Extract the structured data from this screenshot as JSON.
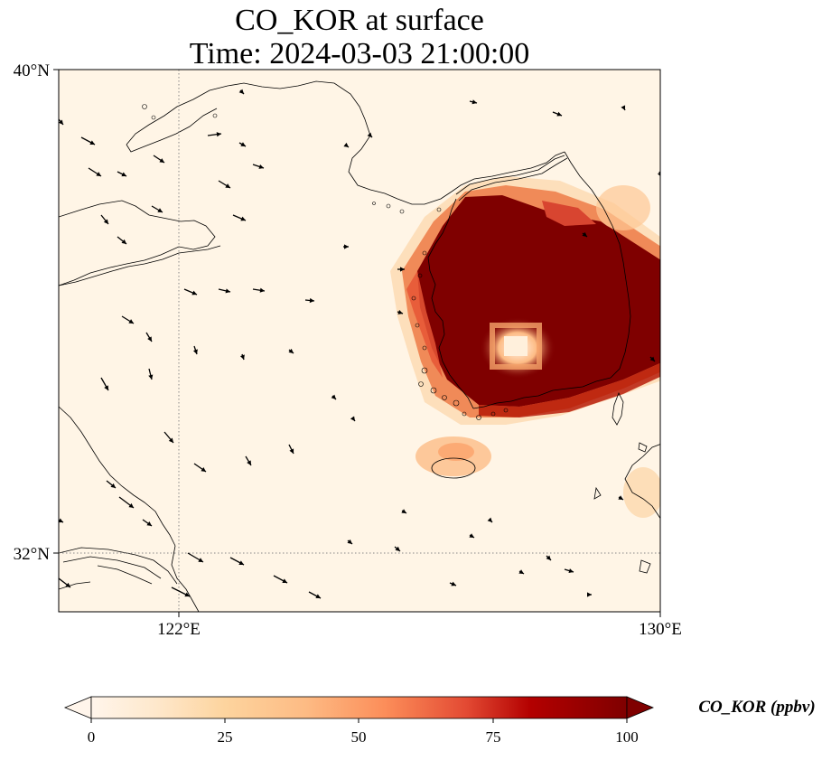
{
  "title_line1": "CO_KOR at surface",
  "title_line2": "Time: 2024-03-03 21:00:00",
  "map": {
    "lon_range": [
      120,
      130
    ],
    "lat_range": [
      31,
      40
    ],
    "lat_ticks": [
      {
        "value": 40,
        "label": "40°N"
      },
      {
        "value": 32,
        "label": "32°N"
      }
    ],
    "lon_ticks": [
      {
        "value": 122,
        "label": "122°E"
      },
      {
        "value": 130,
        "label": "130°E"
      }
    ],
    "gridlines": [
      {
        "axis": "lon",
        "value": 122
      },
      {
        "axis": "lat",
        "value": 32
      }
    ],
    "colors": {
      "background": "#fff5e6",
      "coast": "#000000",
      "arrow": "#000000",
      "gridline": "#888888"
    },
    "features": [
      "Liaodong Peninsula",
      "Shandong Peninsula",
      "Korean Peninsula",
      "Jeju Island",
      "Yangtze River estuary",
      "Kyushu"
    ]
  },
  "colorbar": {
    "label": "CO_KOR (ppbv)",
    "ticks": [
      "0",
      "25",
      "50",
      "75",
      "100"
    ],
    "range": [
      0,
      100
    ],
    "extend": "both",
    "cmap": [
      "#fff5eb",
      "#fee6ce",
      "#fdd0a2",
      "#fdae6b",
      "#fd8d3c",
      "#f16913",
      "#d94801",
      "#a60000",
      "#7f0000"
    ]
  }
}
